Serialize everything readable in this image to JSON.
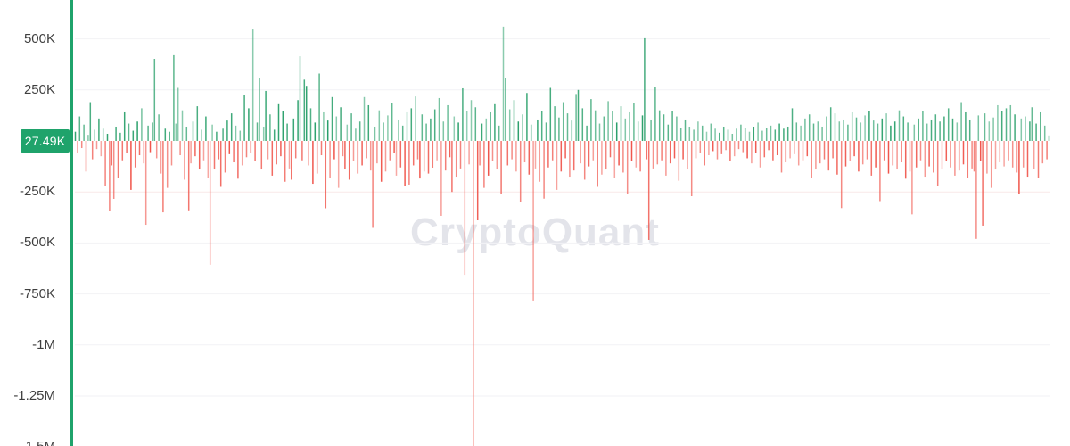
{
  "watermark": "CryptoQuant",
  "y_axis": {
    "current_value_label": "27.49K",
    "ticks": [
      {
        "label": "500K",
        "value": 500
      },
      {
        "label": "250K",
        "value": 250
      },
      {
        "label": "-250K",
        "value": -250
      },
      {
        "label": "-500K",
        "value": -500
      },
      {
        "label": "-750K",
        "value": -750
      },
      {
        "label": "-1M",
        "value": -1000
      },
      {
        "label": "-1.25M",
        "value": -1250
      },
      {
        "label": "-1.5M",
        "value": -1500
      }
    ]
  },
  "colors": {
    "positive": "#2aa06b",
    "negative": "#f0544a",
    "axis_line": "#1fa36b",
    "badge_bg": "#1fa36b",
    "badge_text": "#ffffff",
    "gridline": "#f2f2f5",
    "gridline_minus_250k": "#f9e9e8",
    "watermark": "#e3e4ea",
    "tick_text": "#3f3f3f"
  },
  "chart_data": {
    "type": "bar",
    "unit": "K",
    "ylim": [
      -1500,
      690
    ],
    "zero_line_value": 0,
    "legend": [],
    "grid": true,
    "current_value": 27.49,
    "values": [
      45,
      -60,
      120,
      -35,
      80,
      -150,
      30,
      190,
      -90,
      55,
      -40,
      110,
      -75,
      60,
      -220,
      35,
      -345,
      -120,
      -284,
      70,
      -180,
      40,
      -95,
      140,
      -60,
      85,
      -240,
      50,
      -130,
      95,
      -70,
      160,
      -110,
      -411,
      75,
      -55,
      90,
      402,
      -85,
      130,
      -160,
      -350,
      60,
      -230,
      45,
      -120,
      420,
      85,
      260,
      -70,
      150,
      -190,
      70,
      -340,
      -110,
      95,
      -75,
      170,
      -140,
      55,
      -95,
      120,
      -180,
      -607,
      80,
      -140,
      45,
      -90,
      -225,
      60,
      -155,
      100,
      -65,
      135,
      -105,
      75,
      -185,
      50,
      -120,
      225,
      -80,
      160,
      -60,
      546,
      -100,
      90,
      310,
      -140,
      70,
      245,
      -90,
      130,
      -170,
      55,
      -115,
      180,
      -75,
      145,
      -200,
      85,
      -135,
      -190,
      110,
      -85,
      200,
      415,
      -95,
      300,
      270,
      -120,
      160,
      -210,
      90,
      -160,
      330,
      -70,
      140,
      -330,
      100,
      -180,
      215,
      -90,
      120,
      -230,
      165,
      -75,
      -140,
      80,
      -190,
      135,
      -100,
      60,
      -160,
      95,
      -120,
      215,
      -85,
      175,
      -145,
      -426,
      70,
      -110,
      150,
      -200,
      90,
      -150,
      125,
      -95,
      185,
      -60,
      -170,
      105,
      -130,
      75,
      -220,
      140,
      -214,
      160,
      -120,
      218,
      -90,
      -184,
      130,
      -150,
      85,
      -160,
      110,
      -131,
      155,
      -95,
      210,
      -367,
      95,
      -145,
      175,
      -80,
      -250,
      120,
      -175,
      90,
      -135,
      258,
      -656,
      145,
      -115,
      200,
      -1500,
      165,
      -389,
      -120,
      85,
      -230,
      110,
      -170,
      140,
      -100,
      180,
      -140,
      75,
      -260,
      560,
      310,
      -120,
      155,
      -90,
      200,
      -150,
      95,
      -300,
      130,
      -105,
      235,
      -165,
      80,
      -782,
      -135,
      105,
      -200,
      145,
      -283,
      90,
      -130,
      260,
      -95,
      170,
      -240,
      115,
      -150,
      190,
      -85,
      135,
      -175,
      100,
      -145,
      230,
      250,
      -110,
      160,
      -190,
      75,
      -125,
      205,
      -95,
      150,
      -225,
      85,
      -165,
      120,
      -140,
      195,
      -80,
      145,
      -180,
      90,
      -120,
      170,
      -155,
      110,
      -262,
      140,
      -100,
      185,
      -130,
      95,
      -150,
      125,
      503,
      -90,
      -485,
      105,
      -135,
      265,
      -115,
      150,
      -95,
      130,
      -170,
      80,
      -110,
      145,
      -85,
      120,
      -195,
      65,
      -90,
      105,
      -140,
      70,
      -271,
      55,
      -85,
      95,
      -60,
      75,
      -120,
      45,
      -70,
      85,
      -50,
      60,
      -90,
      40,
      -65,
      70,
      -45,
      55,
      -100,
      35,
      -75,
      60,
      -40,
      80,
      -55,
      65,
      -85,
      45,
      -110,
      70,
      -60,
      90,
      -130,
      50,
      -80,
      65,
      -45,
      75,
      -95,
      55,
      -70,
      85,
      -155,
      60,
      -105,
      70,
      -85,
      160,
      -65,
      90,
      -120,
      75,
      -95,
      110,
      -75,
      130,
      -180,
      85,
      -140,
      95,
      -110,
      70,
      -90,
      120,
      -145,
      165,
      -85,
      135,
      -165,
      95,
      -329,
      105,
      -125,
      80,
      -100,
      140,
      -75,
      115,
      -150,
      90,
      -115,
      125,
      -90,
      145,
      -170,
      100,
      -130,
      85,
      -295,
      110,
      -95,
      135,
      -160,
      75,
      -120,
      95,
      -140,
      150,
      -105,
      120,
      -185,
      90,
      -150,
      -360,
      80,
      -130,
      110,
      -95,
      145,
      -175,
      85,
      -125,
      105,
      -155,
      130,
      -219,
      95,
      -140,
      120,
      -100,
      160,
      -130,
      110,
      -170,
      90,
      -145,
      190,
      -115,
      140,
      -180,
      105,
      -135,
      -150,
      -480,
      125,
      -100,
      -415,
      135,
      -160,
      95,
      -230,
      115,
      -140,
      175,
      -105,
      145,
      -125,
      160,
      -95,
      175,
      -130,
      130,
      -155,
      -260,
      110,
      -130,
      120,
      -175,
      95,
      165,
      -140,
      85,
      -180,
      140,
      -110,
      75,
      -90,
      27
    ]
  }
}
